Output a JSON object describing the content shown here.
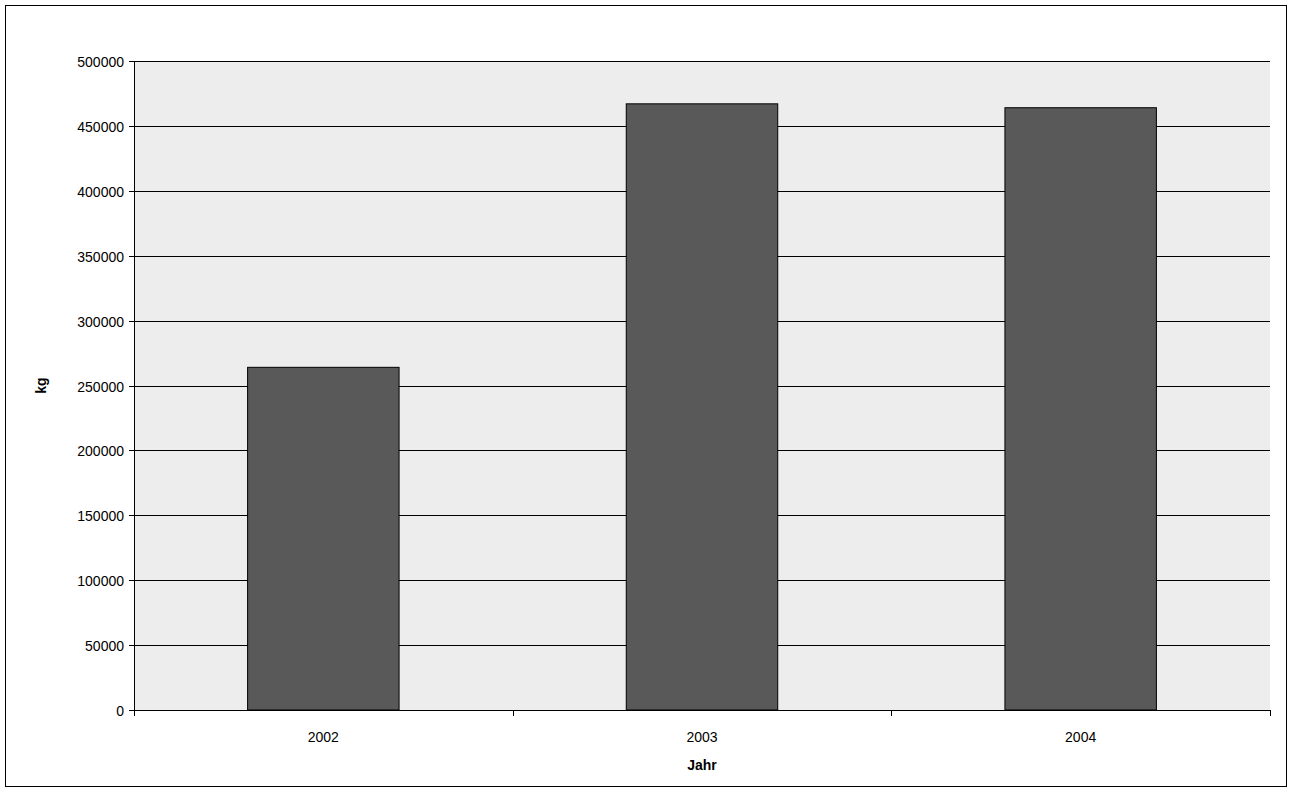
{
  "chart_data": {
    "type": "bar",
    "x_label": "Jahr",
    "y_label": "kg",
    "categories": [
      "2002",
      "2003",
      "2004"
    ],
    "values": [
      264000,
      467000,
      464000
    ],
    "color": "#595959",
    "ylim": [
      0,
      500000
    ],
    "yticks": [
      0,
      50000,
      100000,
      150000,
      200000,
      250000,
      300000,
      350000,
      400000,
      450000,
      500000
    ],
    "grid": true
  }
}
